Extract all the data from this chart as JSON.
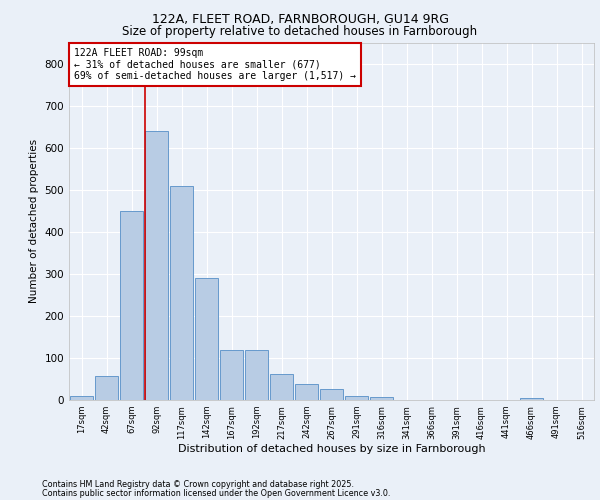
{
  "title1": "122A, FLEET ROAD, FARNBOROUGH, GU14 9RG",
  "title2": "Size of property relative to detached houses in Farnborough",
  "xlabel": "Distribution of detached houses by size in Farnborough",
  "ylabel": "Number of detached properties",
  "categories": [
    "17sqm",
    "42sqm",
    "67sqm",
    "92sqm",
    "117sqm",
    "142sqm",
    "167sqm",
    "192sqm",
    "217sqm",
    "242sqm",
    "267sqm",
    "291sqm",
    "316sqm",
    "341sqm",
    "366sqm",
    "391sqm",
    "416sqm",
    "441sqm",
    "466sqm",
    "491sqm",
    "516sqm"
  ],
  "values": [
    10,
    58,
    450,
    640,
    510,
    290,
    118,
    118,
    63,
    37,
    25,
    10,
    7,
    0,
    0,
    0,
    0,
    0,
    4,
    0,
    0
  ],
  "bar_color": "#b8cce4",
  "bar_edge_color": "#6699cc",
  "vline_color": "#cc0000",
  "annotation_text": "122A FLEET ROAD: 99sqm\n← 31% of detached houses are smaller (677)\n69% of semi-detached houses are larger (1,517) →",
  "annotation_box_color": "#ffffff",
  "annotation_box_edge": "#cc0000",
  "bg_color": "#eaf0f8",
  "plot_bg_color": "#eaf0f8",
  "grid_color": "#ffffff",
  "footer1": "Contains HM Land Registry data © Crown copyright and database right 2025.",
  "footer2": "Contains public sector information licensed under the Open Government Licence v3.0.",
  "ylim": [
    0,
    850
  ],
  "yticks": [
    0,
    100,
    200,
    300,
    400,
    500,
    600,
    700,
    800
  ]
}
